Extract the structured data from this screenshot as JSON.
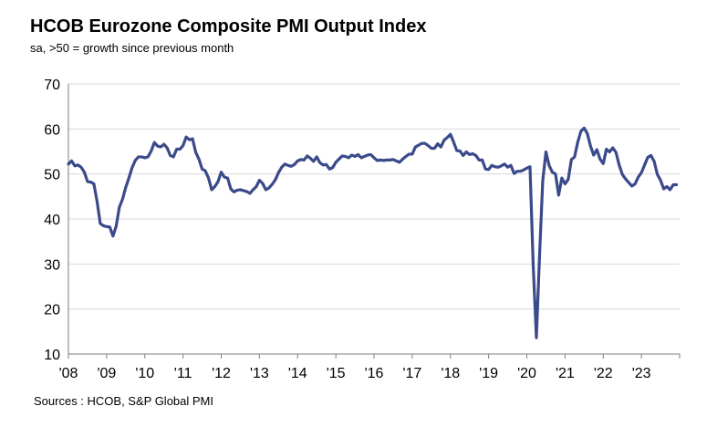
{
  "chart_data": {
    "type": "line",
    "title": "HCOB Eurozone Composite PMI Output Index",
    "subtitle": "sa, >50 = growth  since previous  month",
    "source": "Sources : HCOB, S&P Global PMI",
    "xlabel": "",
    "ylabel": "",
    "ylim": [
      10,
      70
    ],
    "yticks": [
      "10",
      "20",
      "30",
      "40",
      "50",
      "60",
      "70"
    ],
    "xticks": [
      "'08",
      "'09",
      "'10",
      "'11",
      "'12",
      "'13",
      "'14",
      "'15",
      "'16",
      "'17",
      "'18",
      "'19",
      "'20",
      "'21",
      "'22",
      "'23"
    ],
    "grid": true,
    "line_color": "#3A4A8A",
    "series": [
      {
        "name": "",
        "x_start": "2008-01",
        "frequency": "monthly",
        "values": [
          52.2,
          52.9,
          51.8,
          52.0,
          51.5,
          50.4,
          48.3,
          48.2,
          47.8,
          43.9,
          39.0,
          38.5,
          38.3,
          38.2,
          36.2,
          38.4,
          42.6,
          44.4,
          47.0,
          49.1,
          51.4,
          53.0,
          53.8,
          53.8,
          53.6,
          53.8,
          55.1,
          57.0,
          56.2,
          56.0,
          56.6,
          55.8,
          54.1,
          53.8,
          55.5,
          55.5,
          56.3,
          58.2,
          57.6,
          57.8,
          54.8,
          53.3,
          51.1,
          50.7,
          49.1,
          46.5,
          47.2,
          48.3,
          50.4,
          49.3,
          49.1,
          46.7,
          46.0,
          46.4,
          46.5,
          46.3,
          46.1,
          45.7,
          46.5,
          47.2,
          48.6,
          47.9,
          46.5,
          46.9,
          47.7,
          48.7,
          50.3,
          51.5,
          52.2,
          51.9,
          51.7,
          52.1,
          52.9,
          53.2,
          53.1,
          54.0,
          53.5,
          52.8,
          53.8,
          52.5,
          52.0,
          52.1,
          51.1,
          51.4,
          52.6,
          53.3,
          54.0,
          53.9,
          53.6,
          54.2,
          53.9,
          54.3,
          53.6,
          53.9,
          54.2,
          54.3,
          53.6,
          53.0,
          53.1,
          53.0,
          53.1,
          53.1,
          53.2,
          52.9,
          52.6,
          53.3,
          53.9,
          54.4,
          54.4,
          56.0,
          56.4,
          56.8,
          56.8,
          56.3,
          55.7,
          55.7,
          56.7,
          56.0,
          57.5,
          58.1,
          58.8,
          57.1,
          55.2,
          55.1,
          54.1,
          54.9,
          54.3,
          54.5,
          54.1,
          53.1,
          53.1,
          51.1,
          51.0,
          51.9,
          51.6,
          51.5,
          51.8,
          52.2,
          51.5,
          51.9,
          50.1,
          50.6,
          50.6,
          50.9,
          51.3,
          51.6,
          29.7,
          13.6,
          31.9,
          48.5,
          54.9,
          51.9,
          50.4,
          50.0,
          45.3,
          49.1,
          47.8,
          48.8,
          53.2,
          53.8,
          57.1,
          59.5,
          60.2,
          59.0,
          56.2,
          54.2,
          55.4,
          53.3,
          52.3,
          55.5,
          54.9,
          55.8,
          54.8,
          52.0,
          49.9,
          48.9,
          48.1,
          47.3,
          47.8,
          49.3,
          50.3,
          52.0,
          53.7,
          54.1,
          52.8,
          49.9,
          48.6,
          46.7,
          47.2,
          46.5,
          47.6,
          47.6
        ]
      }
    ]
  }
}
